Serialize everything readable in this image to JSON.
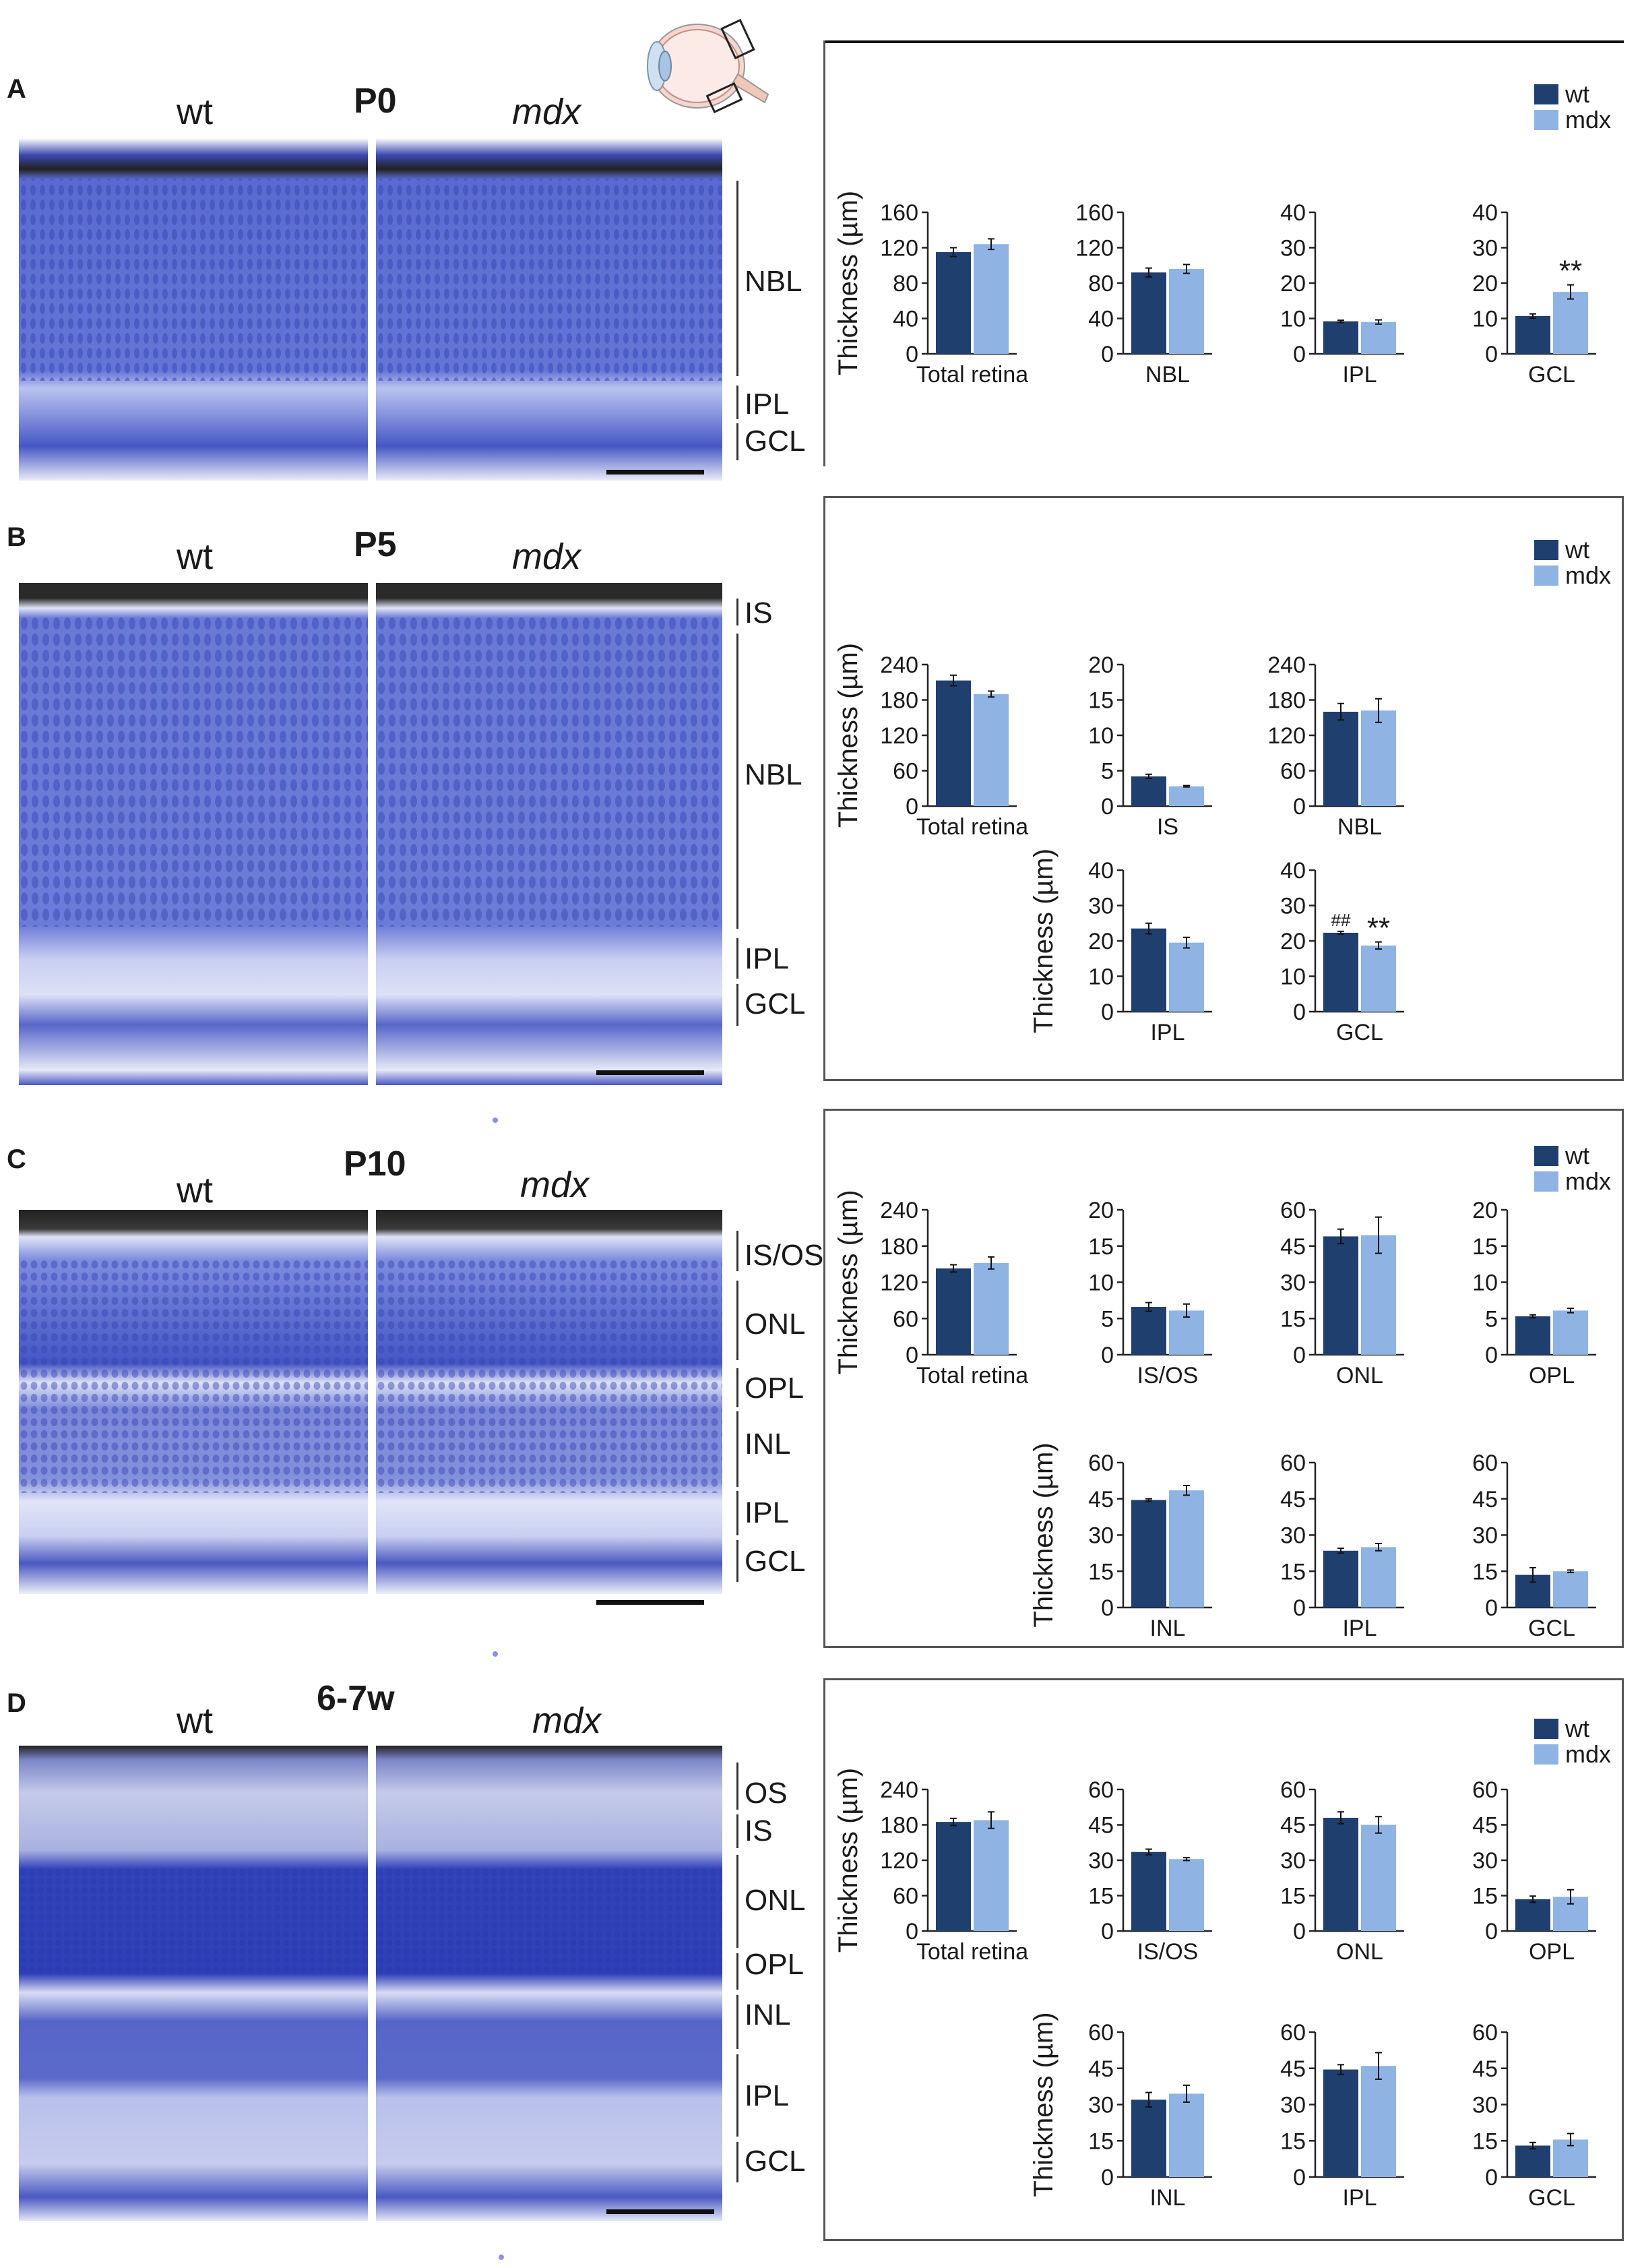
{
  "colors": {
    "wt": "#1f3f6e",
    "mdx": "#8fb3e3",
    "tissue": "#4a5dc8"
  },
  "panels": [
    {
      "letter": "A",
      "age": "P0",
      "wt_label": "wt",
      "mdx_label": "mdx",
      "layers": [
        "NBL",
        "IPL",
        "GCL"
      ],
      "legend": {
        "wt": "wt",
        "mdx": "mdx"
      },
      "charts": [
        {
          "type": "bar",
          "ylabel": "Thickness (µm)",
          "xlabel": "Total retina",
          "ylim": [
            0,
            160
          ],
          "yticks": [
            0,
            40,
            80,
            120,
            160
          ],
          "series": [
            {
              "name": "wt",
              "values": [
                115
              ],
              "err": [
                5
              ]
            },
            {
              "name": "mdx",
              "values": [
                124
              ],
              "err": [
                6
              ]
            }
          ],
          "annotations": []
        },
        {
          "type": "bar",
          "ylabel": "",
          "xlabel": "NBL",
          "ylim": [
            0,
            160
          ],
          "yticks": [
            0,
            40,
            80,
            120,
            160
          ],
          "series": [
            {
              "name": "wt",
              "values": [
                92
              ],
              "err": [
                5
              ]
            },
            {
              "name": "mdx",
              "values": [
                96
              ],
              "err": [
                5
              ]
            }
          ],
          "annotations": []
        },
        {
          "type": "bar",
          "ylabel": "",
          "xlabel": "IPL",
          "ylim": [
            0,
            40
          ],
          "yticks": [
            0,
            10,
            20,
            30,
            40
          ],
          "series": [
            {
              "name": "wt",
              "values": [
                9.2
              ],
              "err": [
                0.3
              ]
            },
            {
              "name": "mdx",
              "values": [
                9
              ],
              "err": [
                0.6
              ]
            }
          ],
          "annotations": []
        },
        {
          "type": "bar",
          "ylabel": "",
          "xlabel": "GCL",
          "ylim": [
            0,
            40
          ],
          "yticks": [
            0,
            10,
            20,
            30,
            40
          ],
          "series": [
            {
              "name": "wt",
              "values": [
                10.7
              ],
              "err": [
                0.6
              ]
            },
            {
              "name": "mdx",
              "values": [
                17.5
              ],
              "err": [
                2
              ]
            }
          ],
          "annotations": [
            {
              "on": "mdx",
              "text": "**"
            }
          ]
        }
      ]
    },
    {
      "letter": "B",
      "age": "P5",
      "wt_label": "wt",
      "mdx_label": "mdx",
      "layers": [
        "IS",
        "NBL",
        "IPL",
        "GCL"
      ],
      "legend": {
        "wt": "wt",
        "mdx": "mdx"
      },
      "charts": [
        {
          "type": "bar",
          "ylabel": "Thickness (µm)",
          "xlabel": "Total retina",
          "ylim": [
            0,
            240
          ],
          "yticks": [
            0,
            60,
            120,
            180,
            240
          ],
          "series": [
            {
              "name": "wt",
              "values": [
                213
              ],
              "err": [
                9
              ]
            },
            {
              "name": "mdx",
              "values": [
                190
              ],
              "err": [
                5
              ]
            }
          ],
          "annotations": []
        },
        {
          "type": "bar",
          "ylabel": "",
          "xlabel": "IS",
          "ylim": [
            0,
            20
          ],
          "yticks": [
            0,
            5,
            10,
            15,
            20
          ],
          "series": [
            {
              "name": "wt",
              "values": [
                4.2
              ],
              "err": [
                0.3
              ]
            },
            {
              "name": "mdx",
              "values": [
                2.8
              ],
              "err": [
                0.1
              ]
            }
          ],
          "annotations": []
        },
        {
          "type": "bar",
          "ylabel": "",
          "xlabel": "NBL",
          "ylim": [
            0,
            240
          ],
          "yticks": [
            0,
            60,
            120,
            180,
            240
          ],
          "series": [
            {
              "name": "wt",
              "values": [
                160
              ],
              "err": [
                14
              ]
            },
            {
              "name": "mdx",
              "values": [
                162
              ],
              "err": [
                20
              ]
            }
          ],
          "annotations": []
        },
        {
          "type": "bar",
          "ylabel": "Thickness (µm)",
          "xlabel": "IPL",
          "ylim": [
            0,
            40
          ],
          "yticks": [
            0,
            10,
            20,
            30,
            40
          ],
          "series": [
            {
              "name": "wt",
              "values": [
                23.5
              ],
              "err": [
                1.5
              ]
            },
            {
              "name": "mdx",
              "values": [
                19.5
              ],
              "err": [
                1.5
              ]
            }
          ],
          "annotations": []
        },
        {
          "type": "bar",
          "ylabel": "",
          "xlabel": "GCL",
          "ylim": [
            0,
            40
          ],
          "yticks": [
            0,
            10,
            20,
            30,
            40
          ],
          "series": [
            {
              "name": "wt",
              "values": [
                22.3
              ],
              "err": [
                0.4
              ]
            },
            {
              "name": "mdx",
              "values": [
                18.7
              ],
              "err": [
                1
              ]
            }
          ],
          "annotations": [
            {
              "on": "wt",
              "text": "##"
            },
            {
              "on": "mdx",
              "text": "**"
            }
          ]
        }
      ]
    },
    {
      "letter": "C",
      "age": "P10",
      "wt_label": "wt",
      "mdx_label": "mdx",
      "layers": [
        "IS/OS",
        "ONL",
        "OPL",
        "INL",
        "IPL",
        "GCL"
      ],
      "legend": {
        "wt": "wt",
        "mdx": "mdx"
      },
      "charts": [
        {
          "type": "bar",
          "ylabel": "Thickness (µm)",
          "xlabel": "Total retina",
          "ylim": [
            0,
            240
          ],
          "yticks": [
            0,
            60,
            120,
            180,
            240
          ],
          "series": [
            {
              "name": "wt",
              "values": [
                143
              ],
              "err": [
                6
              ]
            },
            {
              "name": "mdx",
              "values": [
                152
              ],
              "err": [
                10
              ]
            }
          ],
          "annotations": []
        },
        {
          "type": "bar",
          "ylabel": "",
          "xlabel": "IS/OS",
          "ylim": [
            0,
            20
          ],
          "yticks": [
            0,
            5,
            10,
            15,
            20
          ],
          "series": [
            {
              "name": "wt",
              "values": [
                6.6
              ],
              "err": [
                0.6
              ]
            },
            {
              "name": "mdx",
              "values": [
                6.1
              ],
              "err": [
                0.9
              ]
            }
          ],
          "annotations": []
        },
        {
          "type": "bar",
          "ylabel": "",
          "xlabel": "ONL",
          "ylim": [
            0,
            60
          ],
          "yticks": [
            0,
            15,
            30,
            45,
            60
          ],
          "series": [
            {
              "name": "wt",
              "values": [
                49
              ],
              "err": [
                3
              ]
            },
            {
              "name": "mdx",
              "values": [
                49.5
              ],
              "err": [
                7.5
              ]
            }
          ],
          "annotations": []
        },
        {
          "type": "bar",
          "ylabel": "",
          "xlabel": "OPL",
          "ylim": [
            0,
            20
          ],
          "yticks": [
            0,
            5,
            10,
            15,
            20
          ],
          "series": [
            {
              "name": "wt",
              "values": [
                5.3
              ],
              "err": [
                0.2
              ]
            },
            {
              "name": "mdx",
              "values": [
                6.1
              ],
              "err": [
                0.3
              ]
            }
          ],
          "annotations": []
        },
        {
          "type": "bar",
          "ylabel": "Thickness (µm)",
          "xlabel": "INL",
          "ylim": [
            0,
            60
          ],
          "yticks": [
            0,
            15,
            30,
            45,
            60
          ],
          "series": [
            {
              "name": "wt",
              "values": [
                44.5
              ],
              "err": [
                0.5
              ]
            },
            {
              "name": "mdx",
              "values": [
                48.5
              ],
              "err": [
                2
              ]
            }
          ],
          "annotations": []
        },
        {
          "type": "bar",
          "ylabel": "",
          "xlabel": "IPL",
          "ylim": [
            0,
            60
          ],
          "yticks": [
            0,
            15,
            30,
            45,
            60
          ],
          "series": [
            {
              "name": "wt",
              "values": [
                23.5
              ],
              "err": [
                1
              ]
            },
            {
              "name": "mdx",
              "values": [
                25
              ],
              "err": [
                1.5
              ]
            }
          ],
          "annotations": []
        },
        {
          "type": "bar",
          "ylabel": "",
          "xlabel": "GCL",
          "ylim": [
            0,
            60
          ],
          "yticks": [
            0,
            15,
            30,
            45,
            60
          ],
          "series": [
            {
              "name": "wt",
              "values": [
                13.5
              ],
              "err": [
                3
              ]
            },
            {
              "name": "mdx",
              "values": [
                15
              ],
              "err": [
                0.5
              ]
            }
          ],
          "annotations": []
        }
      ]
    },
    {
      "letter": "D",
      "age": "6-7w",
      "wt_label": "wt",
      "mdx_label": "mdx",
      "layers": [
        "OS",
        "IS",
        "ONL",
        "OPL",
        "INL",
        "IPL",
        "GCL"
      ],
      "legend": {
        "wt": "wt",
        "mdx": "mdx"
      },
      "charts": [
        {
          "type": "bar",
          "ylabel": "Thickness (µm)",
          "xlabel": "Total retina",
          "ylim": [
            0,
            240
          ],
          "yticks": [
            0,
            60,
            120,
            180,
            240
          ],
          "series": [
            {
              "name": "wt",
              "values": [
                185
              ],
              "err": [
                6
              ]
            },
            {
              "name": "mdx",
              "values": [
                188
              ],
              "err": [
                14
              ]
            }
          ],
          "annotations": []
        },
        {
          "type": "bar",
          "ylabel": "",
          "xlabel": "IS/OS",
          "ylim": [
            0,
            60
          ],
          "yticks": [
            0,
            15,
            30,
            45,
            60
          ],
          "series": [
            {
              "name": "wt",
              "values": [
                33.5
              ],
              "err": [
                1.2
              ]
            },
            {
              "name": "mdx",
              "values": [
                30.5
              ],
              "err": [
                0.6
              ]
            }
          ],
          "annotations": []
        },
        {
          "type": "bar",
          "ylabel": "",
          "xlabel": "ONL",
          "ylim": [
            0,
            60
          ],
          "yticks": [
            0,
            15,
            30,
            45,
            60
          ],
          "series": [
            {
              "name": "wt",
              "values": [
                48
              ],
              "err": [
                2.5
              ]
            },
            {
              "name": "mdx",
              "values": [
                45
              ],
              "err": [
                3.5
              ]
            }
          ],
          "annotations": []
        },
        {
          "type": "bar",
          "ylabel": "",
          "xlabel": "OPL",
          "ylim": [
            0,
            60
          ],
          "yticks": [
            0,
            15,
            30,
            45,
            60
          ],
          "series": [
            {
              "name": "wt",
              "values": [
                13.5
              ],
              "err": [
                1.3
              ]
            },
            {
              "name": "mdx",
              "values": [
                14.5
              ],
              "err": [
                3
              ]
            }
          ],
          "annotations": []
        },
        {
          "type": "bar",
          "ylabel": "Thickness (µm)",
          "xlabel": "INL",
          "ylim": [
            0,
            60
          ],
          "yticks": [
            0,
            15,
            30,
            45,
            60
          ],
          "series": [
            {
              "name": "wt",
              "values": [
                32
              ],
              "err": [
                3
              ]
            },
            {
              "name": "mdx",
              "values": [
                34.5
              ],
              "err": [
                3.5
              ]
            }
          ],
          "annotations": []
        },
        {
          "type": "bar",
          "ylabel": "",
          "xlabel": "IPL",
          "ylim": [
            0,
            60
          ],
          "yticks": [
            0,
            15,
            30,
            45,
            60
          ],
          "series": [
            {
              "name": "wt",
              "values": [
                44.5
              ],
              "err": [
                2
              ]
            },
            {
              "name": "mdx",
              "values": [
                46
              ],
              "err": [
                5.5
              ]
            }
          ],
          "annotations": []
        },
        {
          "type": "bar",
          "ylabel": "",
          "xlabel": "GCL",
          "ylim": [
            0,
            60
          ],
          "yticks": [
            0,
            15,
            30,
            45,
            60
          ],
          "series": [
            {
              "name": "wt",
              "values": [
                13
              ],
              "err": [
                1.3
              ]
            },
            {
              "name": "mdx",
              "values": [
                15.5
              ],
              "err": [
                2.5
              ]
            }
          ],
          "annotations": []
        }
      ]
    }
  ]
}
